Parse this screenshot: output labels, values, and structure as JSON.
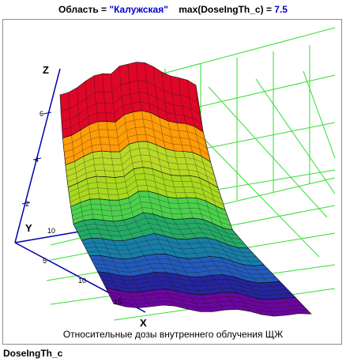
{
  "header": {
    "region_label": "Область = ",
    "region_value": "\"Калужская\"",
    "max_label": "max(DoseIngTh_c) = ",
    "max_value": "7.5"
  },
  "plot": {
    "axis_z_label": "Z",
    "axis_y_label": "Y",
    "axis_x_label": "X",
    "z_ticks": [
      "2",
      "4",
      "6"
    ],
    "y_ticks": [
      "10"
    ],
    "x_ticks": [
      "5",
      "10",
      "15"
    ],
    "colors": {
      "grid": "#33dd33",
      "axes": "#0000aa",
      "mesh": "#111111",
      "bands": [
        "#660099",
        "#1e1e9a",
        "#1c56b8",
        "#127aa5",
        "#1ea862",
        "#48d048",
        "#a6d818",
        "#b8d820",
        "#ff9900",
        "#dd0022"
      ]
    }
  },
  "caption": "Относительные дозы внутреннего облучения ЩЖ",
  "footer": "DoseIngTh_c"
}
